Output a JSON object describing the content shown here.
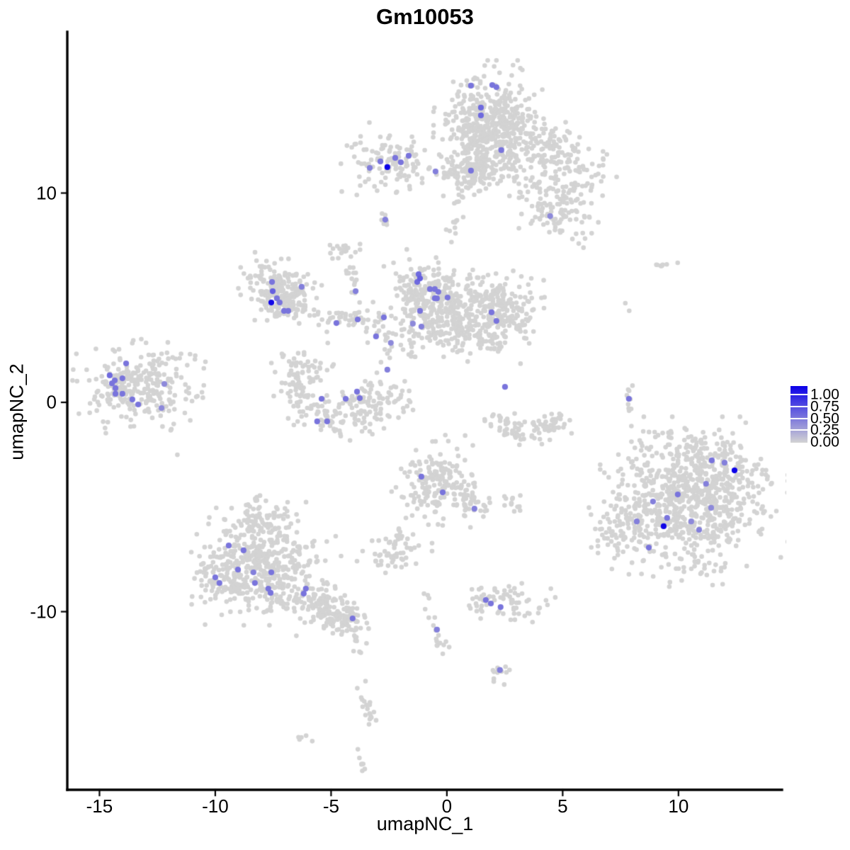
{
  "chart_data": {
    "type": "scatter",
    "title": "Gm10053",
    "xlabel": "umapNC_1",
    "ylabel": "umapNC_2",
    "xlim": [
      -16.39,
      14.47
    ],
    "ylim": [
      -18.51,
      17.7
    ],
    "x_ticks": [
      "-15",
      "-10",
      "-5",
      "0",
      "5",
      "10"
    ],
    "x_tick_values": [
      -15,
      -10,
      -5,
      0,
      5,
      10
    ],
    "y_ticks": [
      "10",
      "0",
      "-10"
    ],
    "y_tick_values": [
      10,
      0,
      -10
    ],
    "grid": false,
    "axis_color": "#000000",
    "legend": {
      "position": "right",
      "labels": [
        "1.00",
        "0.75",
        "0.50",
        "0.25",
        "0.00"
      ],
      "values": [
        1.0,
        0.75,
        0.5,
        0.25,
        0.0
      ],
      "low_color": "#D3D3D3",
      "high_color": "#0B00E8"
    },
    "point_color_zero": "#D3D3D3",
    "background_clusters": [
      {
        "type": "blob",
        "cx": 1.8,
        "cy": 13.1,
        "sx": 0.88,
        "sy": 1.2,
        "n": 500
      },
      {
        "type": "blob",
        "cx": 1.25,
        "cy": 11.1,
        "sx": 0.6,
        "sy": 0.5,
        "n": 90
      },
      {
        "type": "trail",
        "pts": [
          [
            0.73,
            10.25
          ],
          [
            0.28,
            8.8
          ],
          [
            0.34,
            7.71
          ]
        ],
        "w": 0.18,
        "n": 18
      },
      {
        "type": "band",
        "x1": 2.87,
        "y1": 13.47,
        "x2": 6.24,
        "y2": 10.93,
        "w": 0.5,
        "n": 150
      },
      {
        "type": "band",
        "x1": 3.33,
        "y1": 11.78,
        "x2": 5.78,
        "y2": 9.07,
        "w": 0.6,
        "n": 55
      },
      {
        "type": "blob",
        "cx": 4.71,
        "cy": 9.34,
        "sx": 0.8,
        "sy": 0.85,
        "n": 100
      },
      {
        "type": "dots",
        "pts": [
          [
            6.85,
            11.61
          ],
          [
            7.31,
            10.76
          ],
          [
            5.5,
            7.8
          ],
          [
            5.9,
            7.4
          ]
        ]
      },
      {
        "type": "blob",
        "cx": -2.32,
        "cy": 11.51,
        "sx": 0.9,
        "sy": 0.7,
        "n": 115
      },
      {
        "type": "band",
        "x1": -0.95,
        "y1": 11.1,
        "x2": 1.8,
        "y2": 11.07,
        "w": 0.2,
        "n": 30
      },
      {
        "type": "trail",
        "pts": [
          [
            -2.6,
            8.93
          ],
          [
            -2.72,
            8.53
          ]
        ],
        "w": 0.1,
        "n": 6
      },
      {
        "type": "blob",
        "cx": -4.56,
        "cy": 7.21,
        "sx": 0.3,
        "sy": 0.25,
        "n": 20
      },
      {
        "type": "trail",
        "pts": [
          [
            -4.25,
            6.63
          ],
          [
            -4.1,
            5.9
          ],
          [
            -4.01,
            5.11
          ]
        ],
        "w": 0.12,
        "n": 13
      },
      {
        "type": "blob",
        "cx": -7.5,
        "cy": 5.6,
        "sx": 0.6,
        "sy": 0.62,
        "n": 120
      },
      {
        "type": "blob",
        "cx": -6.55,
        "cy": 5.1,
        "sx": 0.5,
        "sy": 0.55,
        "n": 65
      },
      {
        "type": "band",
        "x1": -7.7,
        "y1": 4.4,
        "x2": -6.4,
        "y2": 4.75,
        "w": 0.28,
        "n": 45
      },
      {
        "type": "band",
        "x1": -5.69,
        "y1": 3.92,
        "x2": -2.78,
        "y2": 3.99,
        "w": 0.3,
        "n": 50
      },
      {
        "type": "blob",
        "cx": -0.64,
        "cy": 4.74,
        "sx": 0.82,
        "sy": 0.95,
        "n": 320
      },
      {
        "type": "blob",
        "cx": 2.11,
        "cy": 4.4,
        "sx": 0.78,
        "sy": 0.8,
        "n": 230
      },
      {
        "type": "blob",
        "cx": 0.73,
        "cy": 3.82,
        "sx": 0.5,
        "sy": 0.5,
        "n": 55
      },
      {
        "type": "band",
        "x1": -0.95,
        "y1": 2.98,
        "x2": 2.72,
        "y2": 2.81,
        "w": 0.35,
        "n": 55
      },
      {
        "type": "blob",
        "cx": 3.4,
        "cy": 3.3,
        "sx": 0.25,
        "sy": 0.6,
        "n": 8
      },
      {
        "type": "blob",
        "cx": -2.32,
        "cy": 2.81,
        "sx": 0.55,
        "sy": 0.7,
        "n": 26
      },
      {
        "type": "blob",
        "cx": -13.33,
        "cy": 0.78,
        "sx": 1.05,
        "sy": 0.85,
        "n": 225
      },
      {
        "type": "blob",
        "cx": -13.3,
        "cy": 0.8,
        "sx": 1.7,
        "sy": 1.35,
        "n": 45
      },
      {
        "type": "dots",
        "pts": [
          [
            -11.0,
            2.3
          ],
          [
            -10.4,
            1.9
          ],
          [
            -10.8,
            0.3
          ],
          [
            -11.3,
            -0.5
          ]
        ]
      },
      {
        "type": "arc",
        "cx": -4.3,
        "cy": 1.3,
        "rx": 2.3,
        "ry": 2.2,
        "a1": 160,
        "a2": 345,
        "w": 0.45,
        "n": 190
      },
      {
        "type": "blob",
        "cx": -3.9,
        "cy": 0.2,
        "sx": 0.5,
        "sy": 0.45,
        "n": 45
      },
      {
        "type": "blob",
        "cx": -5.6,
        "cy": 1.9,
        "sx": 0.8,
        "sy": 0.6,
        "n": 18
      },
      {
        "type": "arc",
        "cx": 3.49,
        "cy": -0.25,
        "rx": 1.55,
        "ry": 1.25,
        "a1": 195,
        "a2": 345,
        "w": 0.3,
        "n": 95
      },
      {
        "type": "trail",
        "pts": [
          [
            7.88,
            0.98
          ],
          [
            7.8,
            -0.44
          ]
        ],
        "w": 0.08,
        "n": 10
      },
      {
        "type": "blob",
        "cx": -0.28,
        "cy": -3.72,
        "sx": 0.78,
        "sy": 0.8,
        "n": 185
      },
      {
        "type": "band",
        "x1": 0.73,
        "y1": -4.47,
        "x2": 1.41,
        "y2": -5.41,
        "w": 0.25,
        "n": 30
      },
      {
        "type": "trail",
        "pts": [
          [
            -1.1,
            -4.81
          ],
          [
            -1.96,
            -6.09
          ],
          [
            -2.39,
            -6.8
          ]
        ],
        "w": 0.1,
        "n": 14
      },
      {
        "type": "blob",
        "cx": 2.87,
        "cy": -4.91,
        "sx": 0.35,
        "sy": 0.22,
        "n": 13
      },
      {
        "type": "blob",
        "cx": 10.67,
        "cy": -4.47,
        "sx": 1.5,
        "sy": 1.4,
        "n": 760
      },
      {
        "type": "blob",
        "cx": 8.07,
        "cy": -5.65,
        "sx": 0.8,
        "sy": 0.95,
        "n": 130
      },
      {
        "type": "band",
        "x1": 8.84,
        "y1": -1.93,
        "x2": 12.51,
        "y2": -2.44,
        "w": 0.4,
        "n": 45
      },
      {
        "type": "band",
        "x1": 9.14,
        "y1": -7.51,
        "x2": 11.59,
        "y2": -7.85,
        "w": 0.4,
        "n": 25
      },
      {
        "type": "dots",
        "pts": [
          [
            8.9,
            -8.3
          ],
          [
            10.1,
            -8.5
          ],
          [
            11.0,
            -8.2
          ],
          [
            9.6,
            -8.8
          ]
        ]
      },
      {
        "type": "dots",
        "pts": [
          [
            7.71,
            4.77
          ],
          [
            7.86,
            4.4
          ],
          [
            9.94,
            6.67
          ]
        ]
      },
      {
        "type": "blob",
        "cx": 9.24,
        "cy": 6.56,
        "sx": 0.18,
        "sy": 0.12,
        "n": 7
      },
      {
        "type": "blob",
        "cx": -8.13,
        "cy": -5.65,
        "sx": 0.8,
        "sy": 0.55,
        "n": 100
      },
      {
        "type": "blob",
        "cx": -7.98,
        "cy": -7.44,
        "sx": 1.25,
        "sy": 0.8,
        "n": 250
      },
      {
        "type": "band",
        "x1": -10.2,
        "y1": -8.5,
        "x2": -5.5,
        "y2": -9.3,
        "w": 0.75,
        "n": 200
      },
      {
        "type": "blob",
        "cx": -9.9,
        "cy": -8.2,
        "sx": 0.55,
        "sy": 0.6,
        "n": 60
      },
      {
        "type": "band",
        "x1": -6.15,
        "y1": -9.37,
        "x2": -3.85,
        "y2": -10.56,
        "w": 0.4,
        "n": 80
      },
      {
        "type": "blob",
        "cx": -4.62,
        "cy": -10.39,
        "sx": 0.5,
        "sy": 0.35,
        "n": 55
      },
      {
        "type": "trail",
        "pts": [
          [
            -4.0,
            -11.2
          ],
          [
            -3.8,
            -12.2
          ]
        ],
        "w": 0.08,
        "n": 6
      },
      {
        "type": "dots",
        "pts": [
          [
            -3.43,
            -11.51
          ]
        ]
      },
      {
        "type": "trail",
        "pts": [
          [
            -3.7,
            -13.4
          ],
          [
            -3.6,
            -14.3
          ],
          [
            -3.24,
            -15.3
          ]
        ],
        "w": 0.12,
        "n": 18
      },
      {
        "type": "blob",
        "cx": -6.15,
        "cy": -16.05,
        "sx": 0.18,
        "sy": 0.1,
        "n": 5
      },
      {
        "type": "trail",
        "pts": [
          [
            -3.9,
            -16.5
          ],
          [
            -3.6,
            -17.6
          ]
        ],
        "w": 0.08,
        "n": 7
      },
      {
        "type": "blob",
        "cx": -2.26,
        "cy": -7.11,
        "sx": 0.6,
        "sy": 0.45,
        "n": 50
      },
      {
        "type": "dots",
        "pts": [
          [
            -3.0,
            -7.8
          ],
          [
            -2.8,
            -7.55
          ]
        ]
      },
      {
        "type": "trail",
        "pts": [
          [
            -0.92,
            -9.14
          ],
          [
            -0.73,
            -9.95
          ],
          [
            -0.58,
            -10.83
          ],
          [
            -0.34,
            -11.4
          ],
          [
            -0.09,
            -11.84
          ]
        ],
        "w": 0.1,
        "n": 20
      },
      {
        "type": "blob",
        "cx": 2.42,
        "cy": -9.61,
        "sx": 0.95,
        "sy": 0.42,
        "n": 70
      },
      {
        "type": "blob",
        "cx": 2.32,
        "cy": -12.76,
        "sx": 0.32,
        "sy": 0.28,
        "n": 12
      }
    ],
    "expressing_cells": [
      [
        1.04,
        15.13,
        0.45
      ],
      [
        1.96,
        15.16,
        0.45
      ],
      [
        2.14,
        15.06,
        0.45
      ],
      [
        1.47,
        14.08,
        0.5
      ],
      [
        1.47,
        13.71,
        0.5
      ],
      [
        2.35,
        12.05,
        0.45
      ],
      [
        -0.49,
        11.03,
        0.4
      ],
      [
        1.04,
        11.07,
        0.45
      ],
      [
        4.46,
        8.9,
        0.35
      ],
      [
        -3.33,
        11.2,
        0.4
      ],
      [
        -2.87,
        11.51,
        0.45
      ],
      [
        -2.57,
        11.24,
        1.0
      ],
      [
        -2.23,
        11.68,
        0.45
      ],
      [
        -1.99,
        11.47,
        0.45
      ],
      [
        -1.65,
        11.78,
        0.45
      ],
      [
        -2.66,
        8.73,
        0.4
      ],
      [
        -7.55,
        5.75,
        0.45
      ],
      [
        -7.52,
        5.31,
        0.55
      ],
      [
        -7.34,
        4.97,
        0.45
      ],
      [
        -7.58,
        4.77,
        0.97
      ],
      [
        -7.22,
        4.77,
        0.45
      ],
      [
        -7.03,
        4.37,
        0.45
      ],
      [
        -6.85,
        4.37,
        0.45
      ],
      [
        -6.27,
        5.52,
        0.4
      ],
      [
        -3.94,
        5.31,
        0.4
      ],
      [
        -4.77,
        3.79,
        0.45
      ],
      [
        -3.85,
        3.96,
        0.45
      ],
      [
        -2.72,
        4.06,
        0.45
      ],
      [
        -3.06,
        3.15,
        0.45
      ],
      [
        -2.42,
        2.84,
        0.35
      ],
      [
        -1.22,
        6.12,
        0.5
      ],
      [
        -1.16,
        5.92,
        0.55
      ],
      [
        -1.28,
        5.75,
        0.5
      ],
      [
        -0.73,
        5.41,
        0.45
      ],
      [
        -0.52,
        5.41,
        0.45
      ],
      [
        -0.37,
        5.28,
        0.45
      ],
      [
        -0.52,
        4.97,
        0.45
      ],
      [
        -0.43,
        4.97,
        0.45
      ],
      [
        0.03,
        5.01,
        0.45
      ],
      [
        -1.16,
        4.37,
        0.45
      ],
      [
        -1.47,
        3.76,
        0.35
      ],
      [
        -1.1,
        3.62,
        0.4
      ],
      [
        1.93,
        4.3,
        0.45
      ],
      [
        2.14,
        3.89,
        0.45
      ],
      [
        -13.85,
        1.86,
        0.45
      ],
      [
        -14.56,
        1.29,
        0.5
      ],
      [
        -14.34,
        1.05,
        0.45
      ],
      [
        -14.01,
        1.15,
        0.45
      ],
      [
        -14.46,
        0.91,
        0.45
      ],
      [
        -14.31,
        0.68,
        0.45
      ],
      [
        -14.31,
        0.41,
        0.45
      ],
      [
        -14.01,
        0.41,
        0.45
      ],
      [
        -13.58,
        0.14,
        0.45
      ],
      [
        -13.33,
        -0.1,
        0.45
      ],
      [
        -12.32,
        -0.27,
        0.35
      ],
      [
        -12.2,
        0.88,
        0.35
      ],
      [
        -5.41,
        0.17,
        0.45
      ],
      [
        -4.37,
        0.17,
        0.45
      ],
      [
        -3.88,
        0.51,
        0.45
      ],
      [
        -3.76,
        0.2,
        0.45
      ],
      [
        -5.6,
        -0.91,
        0.45
      ],
      [
        -5.17,
        -0.91,
        0.45
      ],
      [
        -2.57,
        1.56,
        0.4
      ],
      [
        2.51,
        0.74,
        0.45
      ],
      [
        7.86,
        0.17,
        0.45
      ],
      [
        -1.1,
        -3.55,
        0.45
      ],
      [
        -0.18,
        -4.3,
        0.45
      ],
      [
        1.19,
        -5.08,
        0.4
      ],
      [
        -9.42,
        -6.84,
        0.45
      ],
      [
        -8.78,
        -7.07,
        0.45
      ],
      [
        -9.02,
        -7.99,
        0.45
      ],
      [
        -10.0,
        -8.36,
        0.45
      ],
      [
        -9.82,
        -8.63,
        0.45
      ],
      [
        -8.35,
        -8.12,
        0.4
      ],
      [
        -8.29,
        -8.63,
        0.45
      ],
      [
        -7.58,
        -8.12,
        0.45
      ],
      [
        -7.71,
        -8.9,
        0.45
      ],
      [
        -7.61,
        -9.1,
        0.45
      ],
      [
        -6.09,
        -8.9,
        0.45
      ],
      [
        -6.18,
        -9.14,
        0.45
      ],
      [
        -4.07,
        -10.32,
        0.45
      ],
      [
        -0.43,
        -10.86,
        0.4
      ],
      [
        1.68,
        -9.44,
        0.45
      ],
      [
        1.9,
        -9.61,
        0.45
      ],
      [
        2.32,
        -9.78,
        0.45
      ],
      [
        2.29,
        -12.79,
        0.4
      ],
      [
        11.44,
        -2.77,
        0.45
      ],
      [
        11.99,
        -2.88,
        0.4
      ],
      [
        12.42,
        -3.25,
        1.0
      ],
      [
        11.19,
        -3.89,
        0.4
      ],
      [
        9.97,
        -4.4,
        0.45
      ],
      [
        8.9,
        -4.74,
        0.4
      ],
      [
        11.41,
        -5.04,
        0.35
      ],
      [
        9.51,
        -5.52,
        0.45
      ],
      [
        8.2,
        -5.69,
        0.4
      ],
      [
        9.36,
        -5.92,
        0.97
      ],
      [
        10.55,
        -5.69,
        0.35
      ],
      [
        10.89,
        -6.09,
        0.4
      ],
      [
        8.72,
        -6.94,
        0.45
      ]
    ]
  }
}
